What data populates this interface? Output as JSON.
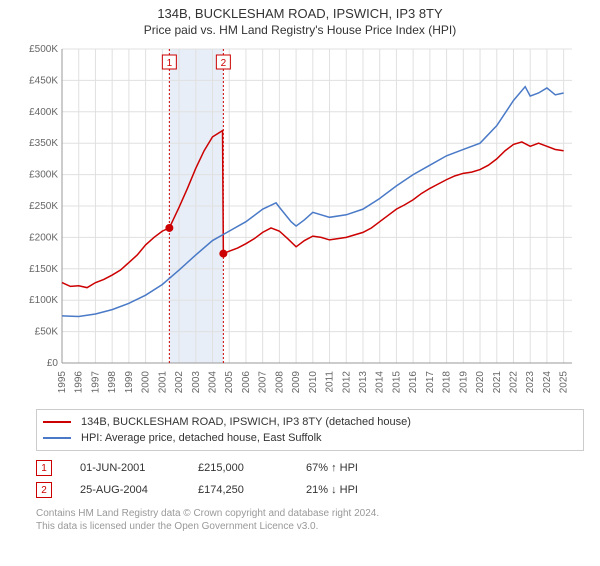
{
  "title": "134B, BUCKLESHAM ROAD, IPSWICH, IP3 8TY",
  "subtitle": "Price paid vs. HM Land Registry's House Price Index (HPI)",
  "chart": {
    "type": "line",
    "background_color": "#ffffff",
    "grid_color": "#e0e0e0",
    "axis_color": "#999999",
    "label_color": "#666666",
    "label_fontsize": 10,
    "xlim": [
      1995,
      2025.5
    ],
    "ylim": [
      0,
      500000
    ],
    "ytick_step": 50000,
    "yticks": [
      "£0",
      "£50K",
      "£100K",
      "£150K",
      "£200K",
      "£250K",
      "£300K",
      "£350K",
      "£400K",
      "£450K",
      "£500K"
    ],
    "xticks": [
      1995,
      1996,
      1997,
      1998,
      1999,
      2000,
      2001,
      2002,
      2003,
      2004,
      2005,
      2006,
      2007,
      2008,
      2009,
      2010,
      2011,
      2012,
      2013,
      2014,
      2015,
      2016,
      2017,
      2018,
      2019,
      2020,
      2021,
      2022,
      2023,
      2024,
      2025
    ],
    "series": [
      {
        "name": "property",
        "label": "134B, BUCKLESHAM ROAD, IPSWICH, IP3 8TY (detached house)",
        "color": "#cc0000",
        "line_width": 1.5,
        "data": [
          [
            1995,
            128000
          ],
          [
            1995.5,
            122000
          ],
          [
            1996,
            123000
          ],
          [
            1996.5,
            120000
          ],
          [
            1997,
            128000
          ],
          [
            1997.5,
            133000
          ],
          [
            1998,
            140000
          ],
          [
            1998.5,
            148000
          ],
          [
            1999,
            160000
          ],
          [
            1999.5,
            172000
          ],
          [
            2000,
            188000
          ],
          [
            2000.5,
            200000
          ],
          [
            2001,
            210000
          ],
          [
            2001.42,
            215000
          ],
          [
            2002,
            248000
          ],
          [
            2002.5,
            278000
          ],
          [
            2003,
            310000
          ],
          [
            2003.5,
            338000
          ],
          [
            2004,
            360000
          ],
          [
            2004.6,
            370000
          ],
          [
            2004.65,
            174250
          ],
          [
            2005,
            178000
          ],
          [
            2005.5,
            183000
          ],
          [
            2006,
            190000
          ],
          [
            2006.5,
            198000
          ],
          [
            2007,
            208000
          ],
          [
            2007.5,
            215000
          ],
          [
            2008,
            210000
          ],
          [
            2008.5,
            198000
          ],
          [
            2009,
            185000
          ],
          [
            2009.5,
            195000
          ],
          [
            2010,
            202000
          ],
          [
            2010.5,
            200000
          ],
          [
            2011,
            196000
          ],
          [
            2011.5,
            198000
          ],
          [
            2012,
            200000
          ],
          [
            2012.5,
            204000
          ],
          [
            2013,
            208000
          ],
          [
            2013.5,
            215000
          ],
          [
            2014,
            225000
          ],
          [
            2014.5,
            235000
          ],
          [
            2015,
            245000
          ],
          [
            2015.5,
            252000
          ],
          [
            2016,
            260000
          ],
          [
            2016.5,
            270000
          ],
          [
            2017,
            278000
          ],
          [
            2017.5,
            285000
          ],
          [
            2018,
            292000
          ],
          [
            2018.5,
            298000
          ],
          [
            2019,
            302000
          ],
          [
            2019.5,
            304000
          ],
          [
            2020,
            308000
          ],
          [
            2020.5,
            315000
          ],
          [
            2021,
            325000
          ],
          [
            2021.5,
            338000
          ],
          [
            2022,
            348000
          ],
          [
            2022.5,
            352000
          ],
          [
            2023,
            345000
          ],
          [
            2023.5,
            350000
          ],
          [
            2024,
            345000
          ],
          [
            2024.5,
            340000
          ],
          [
            2025,
            338000
          ]
        ]
      },
      {
        "name": "hpi",
        "label": "HPI: Average price, detached house, East Suffolk",
        "color": "#4a7ac7",
        "line_width": 1.5,
        "data": [
          [
            1995,
            75000
          ],
          [
            1996,
            74000
          ],
          [
            1997,
            78000
          ],
          [
            1998,
            85000
          ],
          [
            1999,
            95000
          ],
          [
            2000,
            108000
          ],
          [
            2001,
            125000
          ],
          [
            2002,
            148000
          ],
          [
            2003,
            172000
          ],
          [
            2004,
            195000
          ],
          [
            2005,
            210000
          ],
          [
            2006,
            225000
          ],
          [
            2007,
            245000
          ],
          [
            2007.8,
            255000
          ],
          [
            2008,
            248000
          ],
          [
            2008.7,
            225000
          ],
          [
            2009,
            218000
          ],
          [
            2009.5,
            228000
          ],
          [
            2010,
            240000
          ],
          [
            2011,
            232000
          ],
          [
            2012,
            236000
          ],
          [
            2013,
            245000
          ],
          [
            2014,
            262000
          ],
          [
            2015,
            282000
          ],
          [
            2016,
            300000
          ],
          [
            2017,
            315000
          ],
          [
            2018,
            330000
          ],
          [
            2019,
            340000
          ],
          [
            2020,
            350000
          ],
          [
            2021,
            378000
          ],
          [
            2022,
            418000
          ],
          [
            2022.7,
            440000
          ],
          [
            2023,
            425000
          ],
          [
            2023.5,
            430000
          ],
          [
            2024,
            438000
          ],
          [
            2024.5,
            427000
          ],
          [
            2025,
            430000
          ]
        ]
      }
    ],
    "markers": [
      {
        "id": 1,
        "x": 2001.42,
        "y": 215000,
        "band": false,
        "band_end": 2004.65
      },
      {
        "id": 2,
        "x": 2004.65,
        "y": 174250,
        "band": true,
        "band_start": 2001.42
      }
    ],
    "dot_color": "#cc0000"
  },
  "legend": {
    "items": [
      {
        "color": "#cc0000",
        "label": "134B, BUCKLESHAM ROAD, IPSWICH, IP3 8TY (detached house)"
      },
      {
        "color": "#4a7ac7",
        "label": "HPI: Average price, detached house, East Suffolk"
      }
    ]
  },
  "transactions": [
    {
      "num": "1",
      "date": "01-JUN-2001",
      "price": "£215,000",
      "delta": "67% ↑ HPI"
    },
    {
      "num": "2",
      "date": "25-AUG-2004",
      "price": "£174,250",
      "delta": "21% ↓ HPI"
    }
  ],
  "footer_line1": "Contains HM Land Registry data © Crown copyright and database right 2024.",
  "footer_line2": "This data is licensed under the Open Government Licence v3.0."
}
